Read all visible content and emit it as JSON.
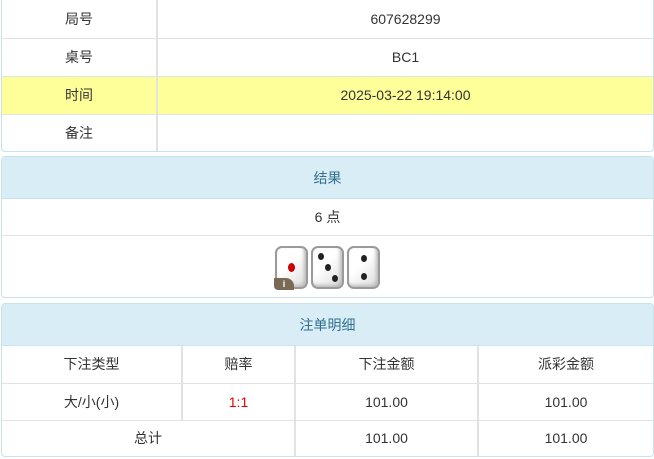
{
  "info": {
    "rows": [
      {
        "label": "局号",
        "value": "607628299"
      },
      {
        "label": "桌号",
        "value": "BC1"
      },
      {
        "label": "时间",
        "value": "2025-03-22 19:14:00"
      },
      {
        "label": "备注",
        "value": ""
      }
    ],
    "highlight_color": "#ffff99"
  },
  "result": {
    "title": "结果",
    "points": "6 点",
    "dice": [
      1,
      3,
      2
    ],
    "badge": "i"
  },
  "bets": {
    "title": "注单明细",
    "columns": [
      "下注类型",
      "赔率",
      "下注金额",
      "派彩金额"
    ],
    "rows": [
      {
        "type": "大/小(小)",
        "odds": "1:1",
        "amount": "101.00",
        "payout": "101.00"
      }
    ],
    "total": {
      "label": "总计",
      "amount": "101.00",
      "payout": "101.00"
    }
  }
}
